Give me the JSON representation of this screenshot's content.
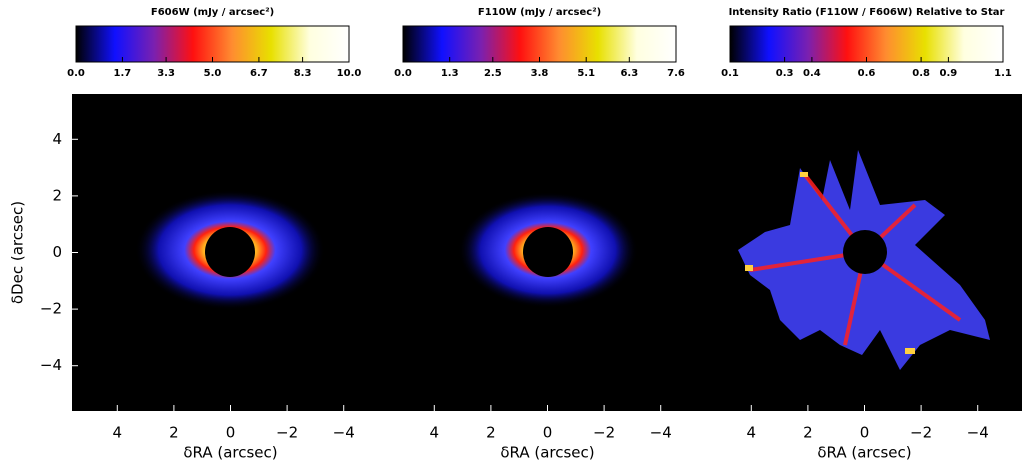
{
  "chart_data": [
    {
      "type": "image",
      "colorbar_title": "F606W (mJy / arcsec²)",
      "colorbar_lim": [
        0,
        10
      ],
      "colorbar_ticks": [
        {
          "value": 0,
          "label": "0.0"
        },
        {
          "value": 1.7,
          "label": "1.7"
        },
        {
          "value": 3.3,
          "label": "3.3"
        },
        {
          "value": 5,
          "label": "5.0"
        },
        {
          "value": 6.7,
          "label": "6.7"
        },
        {
          "value": 8.3,
          "label": "8.3"
        },
        {
          "value": 10,
          "label": "10.0"
        }
      ],
      "colormap": [
        "#000000",
        "#1010ff",
        "#7a20b0",
        "#ff1010",
        "#ff8c30",
        "#e8e000",
        "#ffffe0",
        "#ffffff"
      ],
      "xlabel": "δRA (arcsec)",
      "ylabel": "δDec (arcsec)",
      "xlim": [
        5.6,
        -5.6
      ],
      "ylim": [
        -5.6,
        5.6
      ],
      "xticks": [
        4,
        2,
        0,
        {
          "value": -2,
          "label": "−2"
        },
        {
          "value": -4,
          "label": "−4"
        }
      ],
      "yticks": [
        4,
        2,
        0,
        {
          "value": -2,
          "label": "−2"
        },
        {
          "value": -4,
          "label": "−4"
        }
      ]
    },
    {
      "type": "image",
      "colorbar_title": "F110W (mJy / arcsec²)",
      "colorbar_lim": [
        0,
        7.6
      ],
      "colorbar_ticks": [
        {
          "value": 0,
          "label": "0.0"
        },
        1.3,
        2.5,
        3.8,
        5.1,
        6.3,
        7.6
      ],
      "colormap": [
        "#000000",
        "#1010ff",
        "#7a20b0",
        "#ff1010",
        "#ff8c30",
        "#e8e000",
        "#ffffe0",
        "#ffffff"
      ],
      "xlabel": "δRA (arcsec)",
      "xlim": [
        5.6,
        -5.6
      ],
      "ylim": [
        -5.6,
        5.6
      ],
      "xticks": [
        4,
        2,
        0,
        {
          "value": -2,
          "label": "−2"
        },
        {
          "value": -4,
          "label": "−4"
        }
      ]
    },
    {
      "type": "image",
      "colorbar_title": "Intensity Ratio (F110W / F606W) Relative to Star",
      "colorbar_lim": [
        0.1,
        1.1
      ],
      "colorbar_ticks": [
        0.1,
        0.3,
        0.4,
        0.6,
        0.8,
        0.9,
        1.1
      ],
      "colormap": [
        "#000000",
        "#1010ff",
        "#7a20b0",
        "#ff1010",
        "#ff8c30",
        "#e8e000",
        "#ffffe0",
        "#ffffff"
      ],
      "xlabel": "δRA (arcsec)",
      "xlim": [
        5.6,
        -5.6
      ],
      "ylim": [
        -5.6,
        5.6
      ],
      "xticks": [
        4,
        2,
        0,
        {
          "value": -2,
          "label": "−2"
        },
        {
          "value": -4,
          "label": "−4"
        }
      ]
    }
  ]
}
